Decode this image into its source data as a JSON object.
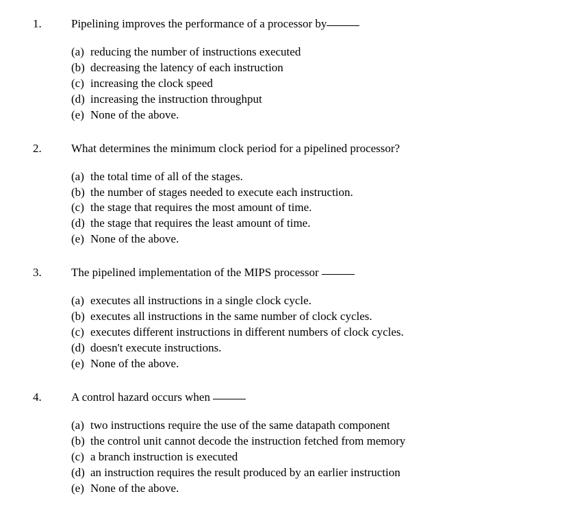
{
  "questions": [
    {
      "num": "1.",
      "text": "Pipelining improves the performance of a processor by",
      "has_blank": true,
      "options": [
        {
          "label": "(a)",
          "text": "reducing the number of instructions executed"
        },
        {
          "label": "(b)",
          "text": "decreasing the latency of each instruction"
        },
        {
          "label": "(c)",
          "text": "increasing the clock speed"
        },
        {
          "label": "(d)",
          "text": "increasing the instruction throughput"
        },
        {
          "label": "(e)",
          "text": "None of the above."
        }
      ]
    },
    {
      "num": "2.",
      "text": "What determines the minimum clock period for a pipelined processor?",
      "has_blank": false,
      "options": [
        {
          "label": "(a)",
          "text": "the total time of all of the stages."
        },
        {
          "label": "(b)",
          "text": "the number of stages needed to execute each instruction."
        },
        {
          "label": "(c)",
          "text": "the stage that requires the most amount of time."
        },
        {
          "label": "(d)",
          "text": "the stage that requires the least amount of time."
        },
        {
          "label": "(e)",
          "text": "None of the above."
        }
      ]
    },
    {
      "num": "3.",
      "text": "The pipelined implementation of the MIPS processor ",
      "has_blank": true,
      "options": [
        {
          "label": "(a)",
          "text": "executes all instructions in a single clock cycle."
        },
        {
          "label": "(b)",
          "text": "executes all instructions in the same number of clock cycles."
        },
        {
          "label": "(c)",
          "text": "executes different instructions in different numbers of clock cycles."
        },
        {
          "label": "(d)",
          "text": "doesn't execute instructions."
        },
        {
          "label": "(e)",
          "text": "None of the above."
        }
      ]
    },
    {
      "num": "4.",
      "text": "A control hazard occurs when ",
      "has_blank": true,
      "options": [
        {
          "label": "(a)",
          "text": "two instructions require the use of the same datapath component"
        },
        {
          "label": "(b)",
          "text": "the control unit cannot decode the instruction fetched from memory"
        },
        {
          "label": "(c)",
          "text": "a branch instruction is executed"
        },
        {
          "label": "(d)",
          "text": "an instruction requires the result produced by an earlier instruction"
        },
        {
          "label": "(e)",
          "text": "None of the above."
        }
      ]
    }
  ]
}
